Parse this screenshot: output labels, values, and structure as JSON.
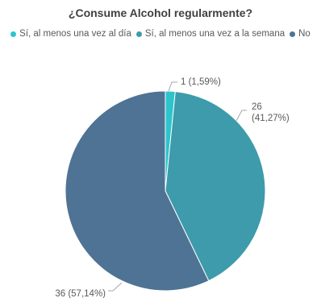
{
  "chart_data": {
    "type": "pie",
    "title": "¿Consume Alcohol regularmente?",
    "categories": [
      "Sí, al menos una vez al día",
      "Sí, al menos una vez a la semana",
      "No"
    ],
    "values": [
      1,
      26,
      36
    ],
    "data_labels": [
      "1 (1,59%)",
      "26|(41,27%)",
      "36 (57,14%)"
    ],
    "colors": [
      "#2ec4cc",
      "#3d9bab",
      "#4e7394"
    ],
    "legend_position": "top",
    "start_angle_deg": 0,
    "direction": "clockwise"
  }
}
